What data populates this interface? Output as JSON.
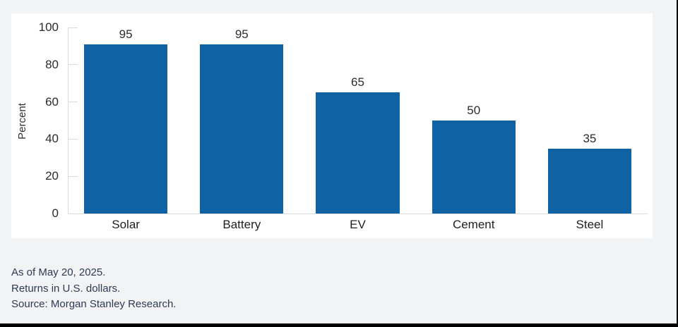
{
  "chart_data": {
    "type": "bar",
    "categories": [
      "Solar",
      "Battery",
      "EV",
      "Cement",
      "Steel"
    ],
    "values": [
      95,
      95,
      65,
      50,
      35
    ],
    "title": "",
    "xlabel": "",
    "ylabel": "Percent",
    "ylim": [
      0,
      100
    ],
    "yticks": [
      0,
      20,
      40,
      60,
      80,
      100
    ],
    "grid": false,
    "legend": null,
    "bar_color": "#0f62a3"
  },
  "footer": {
    "line1": "As of May 20, 2025.",
    "line2": "Returns in U.S. dollars.",
    "line3": "Source: Morgan Stanley Research."
  },
  "colors": {
    "page_background": "#f2f3f5",
    "card_background": "#ffffff",
    "axis_line": "#d9dbdd",
    "chart_text": "#2b2b2b",
    "footer_text": "#2e3a52",
    "frame_border": "#000000"
  }
}
